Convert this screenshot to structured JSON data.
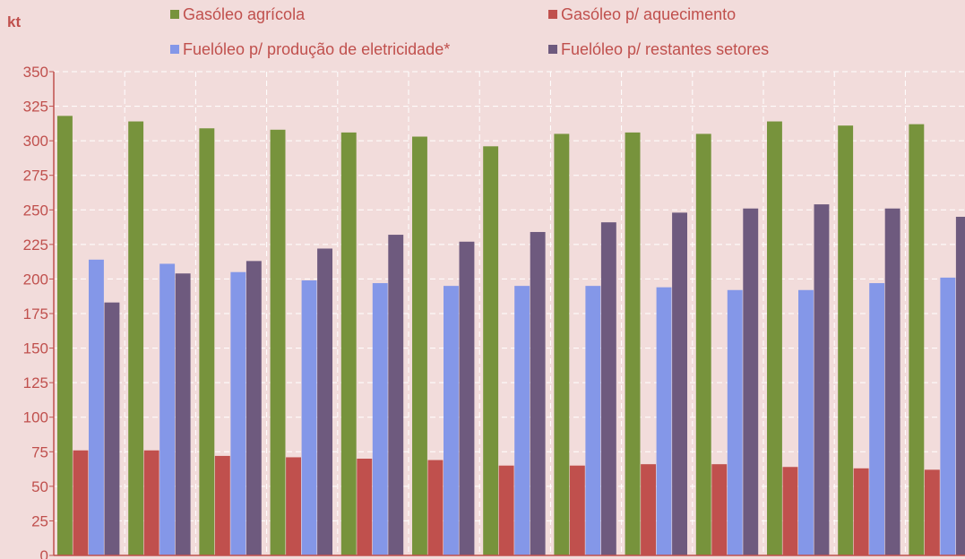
{
  "chart_data": {
    "type": "bar",
    "title": "",
    "xlabel": "",
    "ylabel": "kt",
    "ylim": [
      0,
      350
    ],
    "yticks": [
      "0",
      "25",
      "50",
      "75",
      "100",
      "125",
      "150",
      "175",
      "200",
      "225",
      "250",
      "275",
      "300",
      "325",
      "350"
    ],
    "grid": true,
    "legend_position": "top",
    "categories": [
      "",
      "",
      "",
      "",
      "",
      "",
      "",
      "",
      "",
      "",
      "",
      "",
      ""
    ],
    "series": [
      {
        "name": "Gasóleo agrícola",
        "color": "#77933c",
        "values": [
          318,
          314,
          309,
          308,
          306,
          303,
          296,
          305,
          306,
          305,
          314,
          311,
          312
        ]
      },
      {
        "name": "Gasóleo p/ aquecimento",
        "color": "#c0504d",
        "values": [
          76,
          76,
          72,
          71,
          70,
          69,
          65,
          65,
          66,
          66,
          64,
          63,
          62
        ]
      },
      {
        "name": "Fuelóleo p/ produção de eletricidade*",
        "color": "#8497e8",
        "values": [
          214,
          211,
          205,
          199,
          197,
          195,
          195,
          195,
          194,
          192,
          192,
          197,
          201
        ]
      },
      {
        "name": "Fuelóleo p/ restantes setores",
        "color": "#6e5a7e",
        "values": [
          183,
          204,
          213,
          222,
          232,
          227,
          234,
          241,
          248,
          251,
          254,
          251,
          245
        ]
      }
    ]
  }
}
